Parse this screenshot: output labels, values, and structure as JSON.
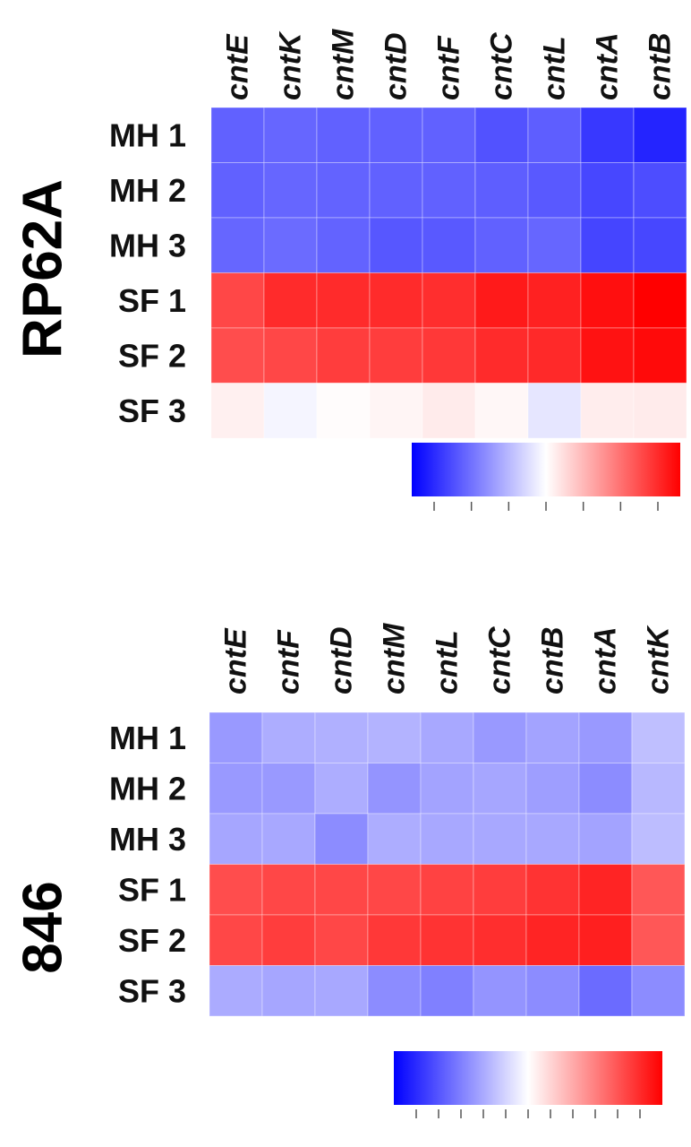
{
  "chart_data": [
    {
      "type": "heatmap",
      "strain": "RP62A",
      "columns": [
        "cntE",
        "cntK",
        "cntM",
        "cntD",
        "cntF",
        "cntC",
        "cntL",
        "cntA",
        "cntB"
      ],
      "rows": [
        "MH 1",
        "MH 2",
        "MH 3",
        "SF 1",
        "SF 2",
        "SF 3"
      ],
      "values": [
        [
          -0.62,
          -0.6,
          -0.62,
          -0.62,
          -0.62,
          -0.68,
          -0.63,
          -0.78,
          -0.86
        ],
        [
          -0.62,
          -0.6,
          -0.61,
          -0.62,
          -0.62,
          -0.63,
          -0.65,
          -0.72,
          -0.7
        ],
        [
          -0.6,
          -0.58,
          -0.61,
          -0.66,
          -0.65,
          -0.62,
          -0.6,
          -0.73,
          -0.72
        ],
        [
          0.72,
          0.83,
          0.83,
          0.83,
          0.82,
          0.9,
          0.87,
          0.94,
          1.0
        ],
        [
          0.7,
          0.72,
          0.76,
          0.76,
          0.78,
          0.83,
          0.84,
          0.93,
          0.96
        ],
        [
          0.06,
          -0.04,
          0.01,
          0.04,
          0.08,
          0.03,
          -0.1,
          0.07,
          0.08
        ]
      ],
      "colorbar": {
        "title": "",
        "ticks": [
          "",
          "",
          "",
          "",
          "",
          "",
          ""
        ],
        "range": [
          -1,
          1
        ],
        "colors": [
          "#0000ff",
          "#ffffff",
          "#ff0000"
        ]
      }
    },
    {
      "type": "heatmap",
      "strain": "846",
      "columns": [
        "cntE",
        "cntF",
        "cntD",
        "cntM",
        "cntL",
        "cntC",
        "cntB",
        "cntA",
        "cntK"
      ],
      "rows": [
        "MH 1",
        "MH 2",
        "MH 3",
        "SF 1",
        "SF 2",
        "SF 3"
      ],
      "values": [
        [
          -0.4,
          -0.32,
          -0.31,
          -0.3,
          -0.34,
          -0.4,
          -0.36,
          -0.4,
          -0.25
        ],
        [
          -0.4,
          -0.4,
          -0.32,
          -0.42,
          -0.36,
          -0.35,
          -0.38,
          -0.45,
          -0.28
        ],
        [
          -0.35,
          -0.34,
          -0.45,
          -0.32,
          -0.34,
          -0.34,
          -0.34,
          -0.36,
          -0.26
        ],
        [
          0.7,
          0.72,
          0.72,
          0.72,
          0.74,
          0.76,
          0.8,
          0.86,
          0.66
        ],
        [
          0.72,
          0.76,
          0.72,
          0.78,
          0.8,
          0.82,
          0.86,
          0.88,
          0.66
        ],
        [
          -0.33,
          -0.35,
          -0.34,
          -0.45,
          -0.5,
          -0.42,
          -0.45,
          -0.58,
          -0.45
        ]
      ],
      "colorbar": {
        "title": "",
        "ticks": [
          "",
          "",
          "",
          "",
          "",
          "",
          "",
          "",
          "",
          "",
          ""
        ],
        "range": [
          -1,
          1
        ],
        "colors": [
          "#0000ff",
          "#ffffff",
          "#ff0000"
        ]
      }
    }
  ]
}
